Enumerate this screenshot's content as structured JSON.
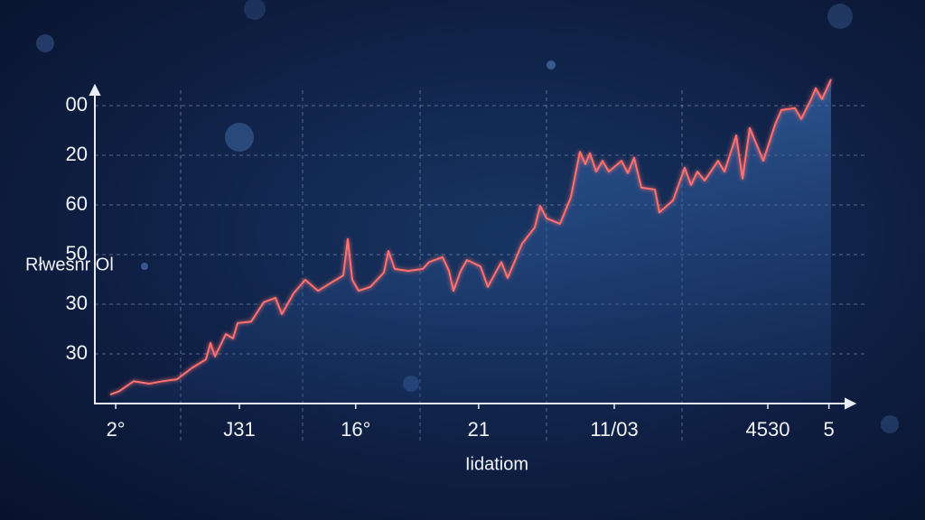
{
  "chart_data": {
    "type": "line",
    "y_label": "Rłwesnr Ol",
    "x_label": "Iidatiom",
    "xlim": [
      0,
      100
    ],
    "ylim": [
      0,
      6.6
    ],
    "xticks": [
      {
        "value": 2.8,
        "label": "2°"
      },
      {
        "value": 19.4,
        "label": "J31"
      },
      {
        "value": 35,
        "label": "16°"
      },
      {
        "value": 51.5,
        "label": "21"
      },
      {
        "value": 69.7,
        "label": "11/03"
      },
      {
        "value": 90.3,
        "label": "4530"
      },
      {
        "value": 98.5,
        "label": "5"
      }
    ],
    "yticks": [
      {
        "value": 1,
        "label": "30"
      },
      {
        "value": 2,
        "label": "30"
      },
      {
        "value": 3,
        "label": "50"
      },
      {
        "value": 4,
        "label": "60"
      },
      {
        "value": 5,
        "label": "20"
      },
      {
        "value": 6,
        "label": "00"
      }
    ],
    "grid": true,
    "series": [
      {
        "color": "#ff6f6f",
        "x": [
          2.06,
          3.27,
          5.21,
          7.27,
          9.09,
          11.03,
          12.97,
          14.91,
          15.52,
          16.12,
          17.58,
          18.55,
          19.15,
          20.97,
          22.67,
          24.24,
          25.09,
          26.67,
          28.24,
          29.94,
          31.88,
          33.33,
          33.94,
          34.55,
          35.39,
          36.97,
          38.79,
          39.39,
          40.24,
          42.06,
          44.0,
          44.85,
          46.67,
          47.52,
          48.12,
          49.09,
          49.94,
          51.76,
          52.73,
          54.55,
          55.39,
          57.33,
          59.03,
          59.76,
          60.61,
          62.42,
          63.88,
          65.09,
          65.82,
          66.42,
          67.27,
          68.12,
          68.97,
          70.67,
          71.52,
          72.36,
          73.33,
          75.15,
          75.76,
          77.58,
          79.15,
          80.0,
          80.85,
          81.82,
          83.64,
          84.48,
          86.06,
          86.91,
          87.88,
          89.7,
          91.27,
          92.12,
          93.94,
          94.79,
          96.12,
          96.73,
          97.58,
          98.79
        ],
        "values": [
          0.18,
          0.25,
          0.45,
          0.4,
          0.45,
          0.49,
          0.71,
          0.89,
          1.22,
          0.95,
          1.4,
          1.31,
          1.62,
          1.65,
          2.04,
          2.13,
          1.8,
          2.22,
          2.49,
          2.27,
          2.45,
          2.58,
          3.31,
          2.49,
          2.27,
          2.35,
          2.64,
          3.07,
          2.71,
          2.67,
          2.71,
          2.85,
          2.95,
          2.67,
          2.27,
          2.67,
          2.89,
          2.76,
          2.35,
          2.85,
          2.53,
          3.22,
          3.55,
          3.98,
          3.73,
          3.62,
          4.16,
          5.07,
          4.82,
          5.04,
          4.67,
          4.89,
          4.67,
          4.89,
          4.64,
          4.95,
          4.35,
          4.31,
          3.85,
          4.09,
          4.75,
          4.4,
          4.67,
          4.49,
          4.89,
          4.67,
          5.4,
          4.53,
          5.55,
          4.89,
          5.62,
          5.91,
          5.95,
          5.73,
          6.13,
          6.35,
          6.13,
          6.53
        ]
      }
    ]
  }
}
